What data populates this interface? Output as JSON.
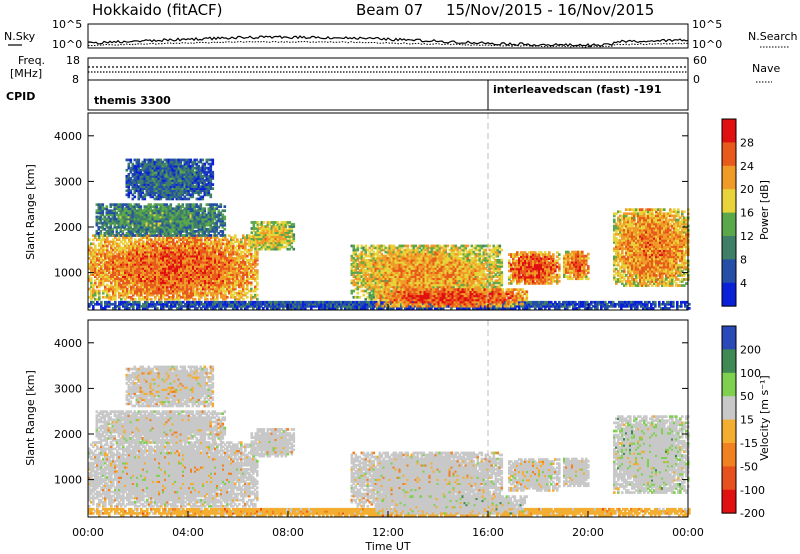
{
  "header": {
    "station": "Hokkaido (fitACF)",
    "beam": "Beam 07",
    "dates": "15/Nov/2015 - 16/Nov/2015"
  },
  "noise_panel": {
    "left_label": "N.Sky",
    "right_label": "N.Search",
    "ticks": [
      "10^5",
      "10^0"
    ]
  },
  "freq_panel": {
    "left_label_1": "Freq.",
    "left_label_2": "[MHz]",
    "ticks_left": [
      "18",
      "8"
    ],
    "ticks_right": [
      "60",
      "0"
    ],
    "right_label": "Nave"
  },
  "cpid_panel": {
    "label": "CPID",
    "segments": [
      {
        "start_hour": 0,
        "end_hour": 16,
        "name": "themis 3300"
      },
      {
        "start_hour": 16,
        "end_hour": 24,
        "name": "interleavedscan (fast) -191"
      }
    ]
  },
  "x_axis": {
    "title": "Time UT",
    "ticks": [
      "00:00",
      "04:00",
      "08:00",
      "12:00",
      "16:00",
      "20:00",
      "00:00"
    ],
    "range_hours": [
      0,
      24
    ]
  },
  "power_panel": {
    "ylabel": "Slant Range [km]",
    "yticks": [
      "1000",
      "2000",
      "3000",
      "4000"
    ],
    "colorbar_label": "Power [dB]",
    "colorbar_ticks": [
      "28",
      "24",
      "20",
      "16",
      "12",
      "8",
      "4"
    ]
  },
  "velocity_panel": {
    "ylabel": "Slant Range [km]",
    "yticks": [
      "1000",
      "2000",
      "3000",
      "4000"
    ],
    "colorbar_label": "Velocity [m s⁻¹]",
    "colorbar_ticks": [
      "200",
      "100",
      "50",
      "15",
      "-15",
      "-50",
      "-100",
      "-200"
    ]
  },
  "chart_data": {
    "type": "heatmap",
    "x_unit": "hours UT",
    "y_unit": "km",
    "xlim": [
      0,
      24
    ],
    "ylim": [
      180,
      4500
    ],
    "power_scale": {
      "range_db": [
        0,
        32
      ],
      "colors": [
        "#0a20d8",
        "#244ea8",
        "#3f7f68",
        "#5aa84a",
        "#e7d43a",
        "#f09a28",
        "#e85a1c",
        "#e01010"
      ]
    },
    "velocity_scale": {
      "range_ms": [
        -200,
        200
      ],
      "colors": [
        "#e01010",
        "#e8501e",
        "#f08020",
        "#f3ad30",
        "#c8c8c8",
        "#7ed04e",
        "#3f8a54",
        "#2a4ab8"
      ]
    },
    "echo_regions": [
      {
        "id": "evening-main",
        "t": [
          0,
          6.8
        ],
        "r": [
          400,
          1800
        ],
        "power_db": 26,
        "velocity_ms": 0
      },
      {
        "id": "evening-upper",
        "t": [
          0.3,
          5.5
        ],
        "r": [
          1800,
          2500
        ],
        "power_db": 12,
        "velocity_ms": 10
      },
      {
        "id": "evening-top",
        "t": [
          1.5,
          5.0
        ],
        "r": [
          2600,
          3500
        ],
        "power_db": 8,
        "velocity_ms": -5
      },
      {
        "id": "ground-near",
        "t": [
          0,
          24
        ],
        "r": [
          200,
          380
        ],
        "power_db": 6,
        "velocity_ms": -30
      },
      {
        "id": "pre-midnight-tail",
        "t": [
          6.5,
          8.2
        ],
        "r": [
          1500,
          2100
        ],
        "power_db": 20,
        "velocity_ms": 5
      },
      {
        "id": "midnight-patches",
        "t": [
          10.5,
          16.5
        ],
        "r": [
          400,
          1600
        ],
        "power_db": 22,
        "velocity_ms": 0
      },
      {
        "id": "post-midnight-ground",
        "t": [
          11.5,
          17.5
        ],
        "r": [
          250,
          650
        ],
        "power_db": 28,
        "velocity_ms": 30
      },
      {
        "id": "patch-17h",
        "t": [
          16.8,
          18.8
        ],
        "r": [
          750,
          1450
        ],
        "power_db": 28,
        "velocity_ms": -5
      },
      {
        "id": "patch-19h",
        "t": [
          19.0,
          20.0
        ],
        "r": [
          850,
          1450
        ],
        "power_db": 26,
        "velocity_ms": 0
      },
      {
        "id": "morning-main",
        "t": [
          21.0,
          24
        ],
        "r": [
          700,
          2400
        ],
        "power_db": 24,
        "velocity_ms": 40
      }
    ],
    "series": [
      {
        "name": "N.Sky",
        "panel": "noise",
        "y_range": [
          "10^0",
          "10^5"
        ]
      },
      {
        "name": "N.Search",
        "panel": "noise",
        "y_range": [
          "10^0",
          "10^5"
        ]
      },
      {
        "name": "Freq.",
        "panel": "freq",
        "unit": "MHz",
        "ylim": [
          8,
          18
        ],
        "value_approx": 11
      },
      {
        "name": "Nave",
        "panel": "freq",
        "ylim": [
          0,
          60
        ],
        "value_approx": 22
      }
    ]
  }
}
